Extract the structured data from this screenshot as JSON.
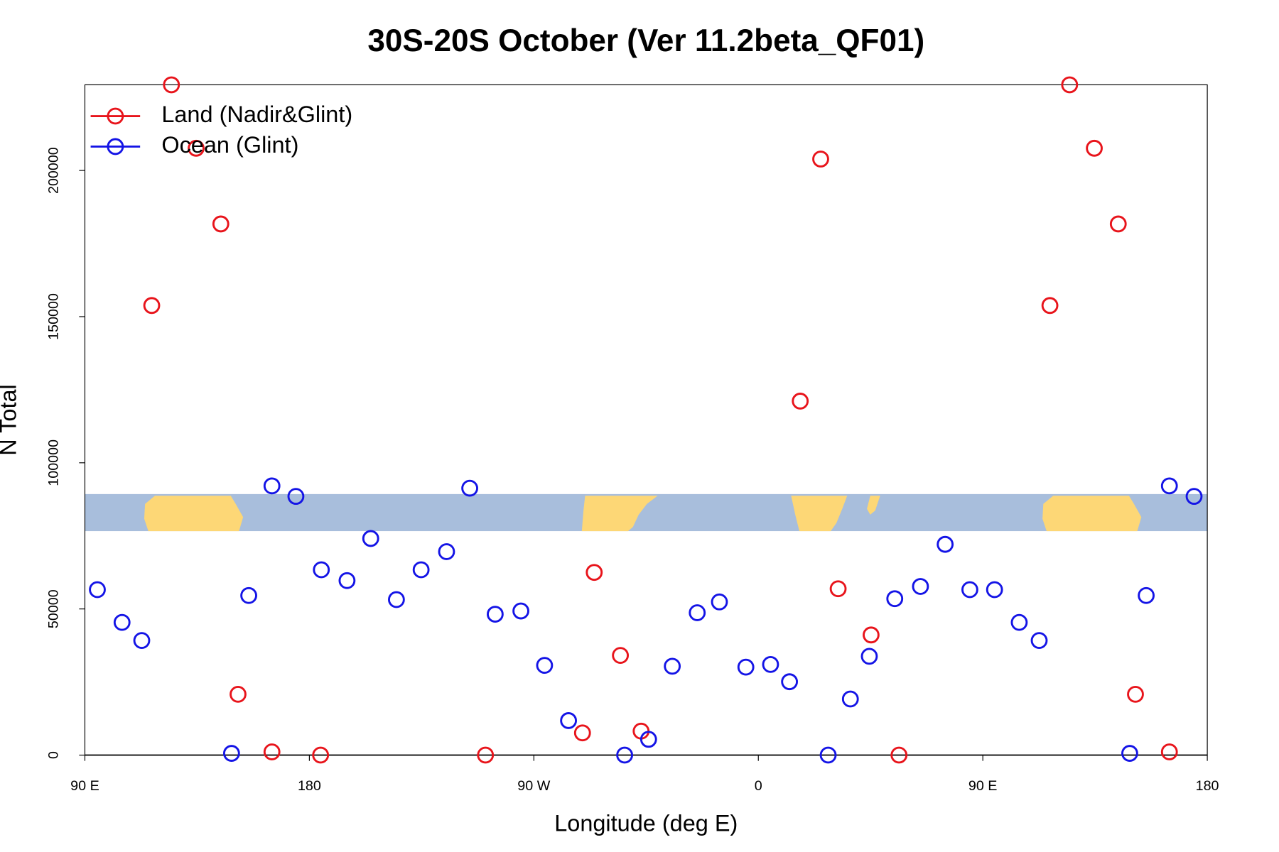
{
  "chart_data": {
    "type": "scatter",
    "title": "30S-20S October (Ver 11.2beta_QF01)",
    "x_label": "Longitude (deg E)",
    "y_label": "N Total",
    "xlim": [
      90,
      540
    ],
    "ylim": [
      0,
      229300
    ],
    "xticks": [
      {
        "value": 90,
        "label": "90 E"
      },
      180,
      {
        "value": 270,
        "label": "90 W"
      },
      {
        "value": 360,
        "label": "0"
      },
      {
        "value": 450,
        "label": "90 E"
      },
      {
        "value": 540,
        "label": "180"
      }
    ],
    "yticks": [
      0,
      50000,
      100000,
      150000,
      200000
    ],
    "legend": "topleft",
    "series": [
      {
        "name": "Land (Nadir&Glint)",
        "color": "#e8141b",
        "x": [
          116.8,
          124.7,
          134.6,
          144.5,
          151.4,
          165.0,
          184.5,
          250.6,
          289.5,
          294.2,
          304.7,
          313.0,
          376.8,
          385.0,
          392.0,
          405.2,
          416.4,
          476.9,
          484.8,
          494.7,
          504.3,
          511.2,
          524.8
        ],
        "values": [
          153800,
          229300,
          207600,
          181700,
          20800,
          1100,
          0,
          0,
          7600,
          62500,
          34100,
          8200,
          121100,
          203900,
          56900,
          41100,
          0,
          153800,
          229300,
          207600,
          181700,
          20800,
          1100
        ]
      },
      {
        "name": "Ocean (Glint)",
        "color": "#1414e6",
        "x": [
          95.0,
          104.9,
          112.8,
          148.8,
          155.7,
          165.0,
          174.6,
          184.8,
          195.1,
          204.6,
          214.9,
          224.8,
          235.0,
          244.3,
          254.5,
          264.8,
          274.3,
          283.9,
          306.4,
          316.0,
          325.5,
          335.5,
          344.4,
          355.0,
          364.9,
          372.5,
          388.0,
          396.9,
          404.5,
          414.7,
          425.0,
          434.9,
          444.8,
          454.7,
          464.6,
          472.6,
          508.9,
          515.5,
          524.8,
          534.7
        ],
        "values": [
          56600,
          45400,
          39200,
          600,
          54600,
          92100,
          88500,
          63400,
          59700,
          74100,
          53200,
          63400,
          69600,
          91300,
          48200,
          49300,
          30700,
          11800,
          0,
          5400,
          30400,
          48700,
          52400,
          30100,
          31000,
          25100,
          0,
          19200,
          33800,
          53500,
          57700,
          72100,
          56600,
          56600,
          45400,
          39200,
          600,
          54600,
          92100,
          88500
        ]
      }
    ]
  }
}
